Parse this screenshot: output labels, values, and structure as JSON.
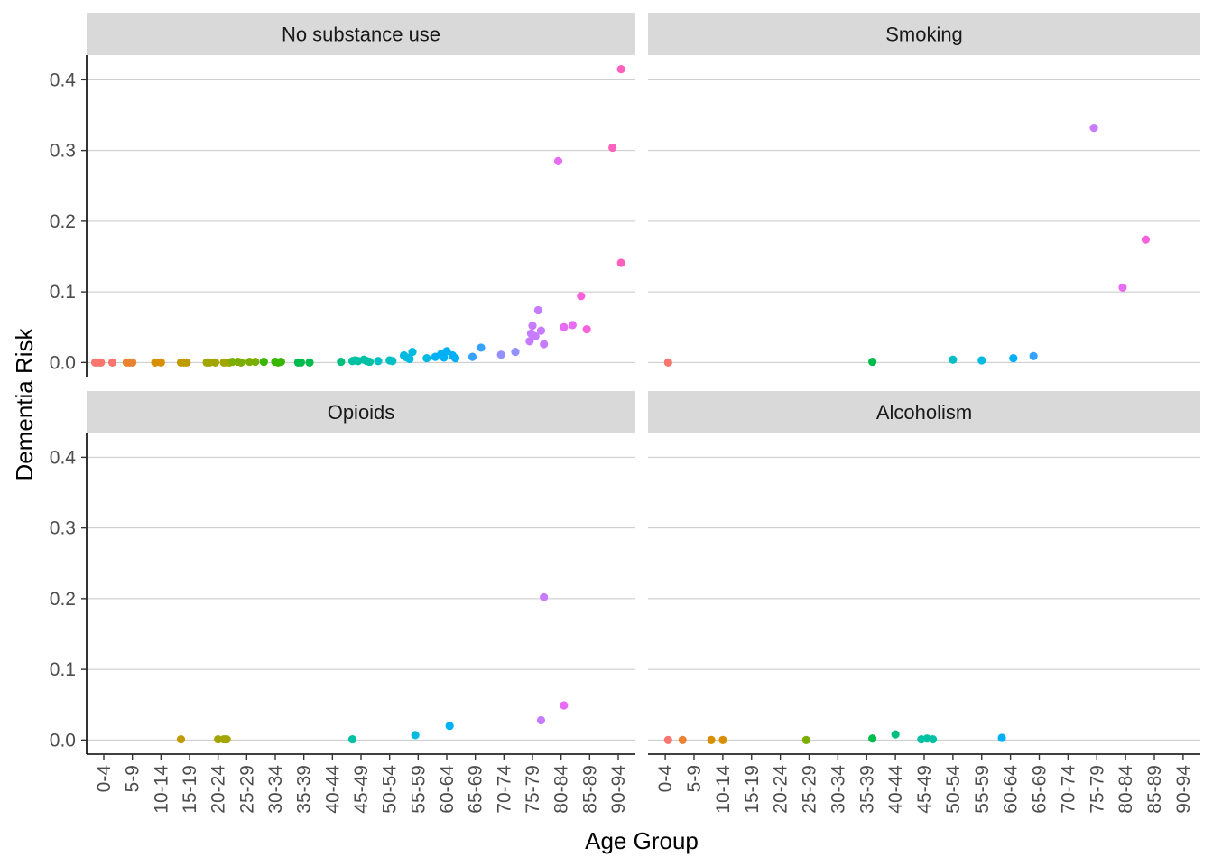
{
  "chart_data": {
    "type": "scatter",
    "xlabel": "Age Group",
    "ylabel": "Dementia Risk",
    "categories": [
      "0-4",
      "5-9",
      "10-14",
      "15-19",
      "20-24",
      "25-29",
      "30-34",
      "35-39",
      "40-44",
      "45-49",
      "50-54",
      "55-59",
      "60-64",
      "65-69",
      "70-74",
      "75-79",
      "80-84",
      "85-89",
      "90-94"
    ],
    "ylim": [
      -0.02,
      0.435
    ],
    "yticks": [
      0.0,
      0.1,
      0.2,
      0.3,
      0.4
    ],
    "ytick_labels": [
      "0.0",
      "0.1",
      "0.2",
      "0.3",
      "0.4"
    ],
    "grid": "horizontal major",
    "legend": "none",
    "point_colors": [
      "#F8766D",
      "#EA8331",
      "#D89000",
      "#C09B00",
      "#A3A500",
      "#7CAE00",
      "#39B600",
      "#00BB4E",
      "#00BF7D",
      "#00C1A3",
      "#00BFC4",
      "#00BAE0",
      "#00B0F6",
      "#35A2FF",
      "#9590FF",
      "#C77CFF",
      "#E76BF3",
      "#FA62DB",
      "#FF62BC"
    ],
    "panels": [
      {
        "title": "No substance use",
        "points": [
          [
            -0.3,
            0
          ],
          [
            -0.2,
            0
          ],
          [
            -0.1,
            0
          ],
          [
            0.3,
            0
          ],
          [
            0.8,
            0
          ],
          [
            0.9,
            0
          ],
          [
            1.0,
            0
          ],
          [
            1.8,
            0
          ],
          [
            2.0,
            0
          ],
          [
            2.7,
            0
          ],
          [
            2.8,
            0
          ],
          [
            2.9,
            0
          ],
          [
            3.6,
            0
          ],
          [
            3.7,
            0
          ],
          [
            3.9,
            0
          ],
          [
            4.2,
            0
          ],
          [
            4.3,
            0
          ],
          [
            4.4,
            0
          ],
          [
            4.5,
            0.001
          ],
          [
            4.7,
            0.001
          ],
          [
            4.8,
            0
          ],
          [
            5.1,
            0.001
          ],
          [
            5.3,
            0.001
          ],
          [
            5.6,
            0.001
          ],
          [
            6.0,
            0.001
          ],
          [
            6.1,
            0
          ],
          [
            6.2,
            0.001
          ],
          [
            6.8,
            0
          ],
          [
            6.9,
            0
          ],
          [
            7.2,
            0
          ],
          [
            8.3,
            0.001
          ],
          [
            8.7,
            0.002
          ],
          [
            8.8,
            0.003
          ],
          [
            8.9,
            0.002
          ],
          [
            9.1,
            0.004
          ],
          [
            9.2,
            0.002
          ],
          [
            9.3,
            0.001
          ],
          [
            9.6,
            0.002
          ],
          [
            10.0,
            0.003
          ],
          [
            10.1,
            0.002
          ],
          [
            10.5,
            0.01
          ],
          [
            10.6,
            0.007
          ],
          [
            10.7,
            0.005
          ],
          [
            10.8,
            0.015
          ],
          [
            11.3,
            0.006
          ],
          [
            11.6,
            0.008
          ],
          [
            11.8,
            0.012
          ],
          [
            11.9,
            0.007
          ],
          [
            12.0,
            0.016
          ],
          [
            12.2,
            0.01
          ],
          [
            12.3,
            0.006
          ],
          [
            12.9,
            0.008
          ],
          [
            13.2,
            0.021
          ],
          [
            13.9,
            0.011
          ],
          [
            14.4,
            0.015
          ],
          [
            14.9,
            0.03
          ],
          [
            14.95,
            0.041
          ],
          [
            15.0,
            0.052
          ],
          [
            15.1,
            0.037
          ],
          [
            15.2,
            0.074
          ],
          [
            15.3,
            0.045
          ],
          [
            15.4,
            0.026
          ],
          [
            15.9,
            0.285
          ],
          [
            16.1,
            0.05
          ],
          [
            16.4,
            0.053
          ],
          [
            16.7,
            0.094
          ],
          [
            16.9,
            0.047
          ],
          [
            17.8,
            0.304
          ],
          [
            18.1,
            0.141
          ],
          [
            18.1,
            0.415
          ]
        ]
      },
      {
        "title": "Smoking",
        "points": [
          [
            0.1,
            0
          ],
          [
            7.2,
            0.001
          ],
          [
            10.0,
            0.004
          ],
          [
            11.0,
            0.003
          ],
          [
            12.1,
            0.006
          ],
          [
            12.8,
            0.009
          ],
          [
            14.9,
            0.332
          ],
          [
            15.9,
            0.106
          ],
          [
            16.7,
            0.174
          ]
        ]
      },
      {
        "title": "Opioids",
        "points": [
          [
            2.7,
            0.001
          ],
          [
            4.0,
            0.001
          ],
          [
            4.2,
            0.001
          ],
          [
            4.3,
            0.001
          ],
          [
            8.7,
            0.001
          ],
          [
            10.9,
            0.007
          ],
          [
            12.1,
            0.02
          ],
          [
            15.3,
            0.028
          ],
          [
            15.4,
            0.202
          ],
          [
            16.1,
            0.049
          ]
        ]
      },
      {
        "title": "Alcoholism",
        "points": [
          [
            0.1,
            0
          ],
          [
            0.6,
            0
          ],
          [
            1.6,
            0
          ],
          [
            2.0,
            0
          ],
          [
            4.9,
            0
          ],
          [
            7.2,
            0.002
          ],
          [
            8.0,
            0.008
          ],
          [
            8.9,
            0.001
          ],
          [
            9.1,
            0.002
          ],
          [
            9.3,
            0.001
          ],
          [
            11.7,
            0.003
          ]
        ]
      }
    ]
  }
}
